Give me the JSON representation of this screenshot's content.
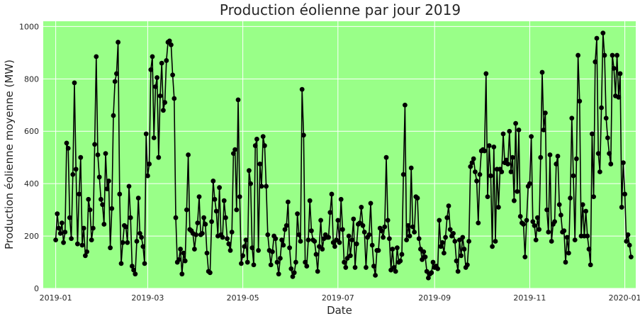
{
  "chart_data": {
    "type": "line",
    "title": "Production éolienne par jour 2019",
    "xlabel": "Date",
    "ylabel": "Production éolienne moyenne (MW)",
    "x_start": "2019-01-01",
    "xlim": [
      "2018-12-24",
      "2020-01-08"
    ],
    "ylim": [
      0,
      1020
    ],
    "grid": true,
    "background_color": "#99ff88",
    "line_color": "#000000",
    "x_ticks": [
      {
        "date": "2019-01-01",
        "label": "2019-01"
      },
      {
        "date": "2019-03-01",
        "label": "2019-03"
      },
      {
        "date": "2019-05-01",
        "label": "2019-05"
      },
      {
        "date": "2019-07-01",
        "label": "2019-07"
      },
      {
        "date": "2019-09-01",
        "label": "2019-09"
      },
      {
        "date": "2019-11-01",
        "label": "2019-11"
      },
      {
        "date": "2020-01-01",
        "label": "2020-01"
      }
    ],
    "y_ticks": [
      0,
      200,
      400,
      600,
      800,
      1000
    ],
    "values": [
      185,
      285,
      230,
      210,
      250,
      175,
      215,
      555,
      535,
      270,
      190,
      435,
      785,
      455,
      170,
      360,
      500,
      165,
      230,
      125,
      140,
      340,
      300,
      185,
      230,
      550,
      885,
      510,
      425,
      340,
      320,
      245,
      515,
      380,
      410,
      155,
      305,
      660,
      790,
      820,
      940,
      360,
      95,
      175,
      240,
      235,
      175,
      390,
      270,
      85,
      70,
      55,
      180,
      345,
      210,
      195,
      160,
      95,
      590,
      430,
      475,
      835,
      885,
      575,
      770,
      805,
      500,
      735,
      860,
      680,
      710,
      870,
      940,
      945,
      930,
      815,
      725,
      270,
      100,
      110,
      150,
      55,
      135,
      105,
      300,
      510,
      225,
      220,
      210,
      150,
      205,
      250,
      350,
      205,
      210,
      270,
      245,
      135,
      65,
      60,
      255,
      410,
      340,
      295,
      200,
      385,
      205,
      195,
      335,
      270,
      190,
      170,
      145,
      215,
      515,
      530,
      300,
      720,
      350,
      95,
      125,
      160,
      185,
      100,
      450,
      400,
      155,
      90,
      545,
      570,
      145,
      475,
      390,
      580,
      545,
      390,
      205,
      145,
      90,
      140,
      200,
      190,
      100,
      55,
      115,
      185,
      165,
      225,
      240,
      330,
      155,
      75,
      45,
      60,
      100,
      285,
      205,
      180,
      760,
      585,
      100,
      85,
      185,
      335,
      220,
      185,
      180,
      130,
      65,
      160,
      260,
      150,
      190,
      205,
      195,
      195,
      290,
      360,
      175,
      160,
      185,
      260,
      175,
      340,
      225,
      100,
      80,
      115,
      200,
      125,
      185,
      265,
      80,
      170,
      245,
      250,
      310,
      240,
      215,
      80,
      195,
      205,
      325,
      165,
      85,
      50,
      145,
      145,
      230,
      220,
      195,
      235,
      500,
      260,
      190,
      70,
      150,
      80,
      65,
      155,
      100,
      105,
      130,
      435,
      700,
      185,
      240,
      200,
      460,
      235,
      215,
      350,
      345,
      190,
      150,
      110,
      140,
      120,
      65,
      40,
      55,
      60,
      100,
      80,
      85,
      75,
      260,
      160,
      175,
      135,
      195,
      270,
      315,
      225,
      200,
      210,
      180,
      105,
      65,
      185,
      125,
      195,
      150,
      80,
      90,
      180,
      465,
      480,
      495,
      445,
      410,
      250,
      435,
      525,
      530,
      525,
      820,
      350,
      545,
      430,
      160,
      540,
      180,
      455,
      310,
      455,
      445,
      590,
      480,
      490,
      475,
      600,
      445,
      500,
      335,
      630,
      370,
      605,
      275,
      250,
      245,
      120,
      260,
      390,
      400,
      580,
      255,
      240,
      185,
      270,
      225,
      500,
      825,
      605,
      670,
      300,
      215,
      510,
      180,
      245,
      255,
      475,
      505,
      320,
      280,
      215,
      220,
      100,
      195,
      135,
      345,
      650,
      430,
      185,
      495,
      890,
      715,
      200,
      320,
      200,
      295,
      200,
      150,
      90,
      590,
      350,
      865,
      955,
      515,
      445,
      690,
      975,
      890,
      650,
      575,
      515,
      475,
      890,
      840,
      735,
      890,
      730,
      820,
      310,
      480,
      360,
      180,
      205,
      165,
      120
    ]
  }
}
